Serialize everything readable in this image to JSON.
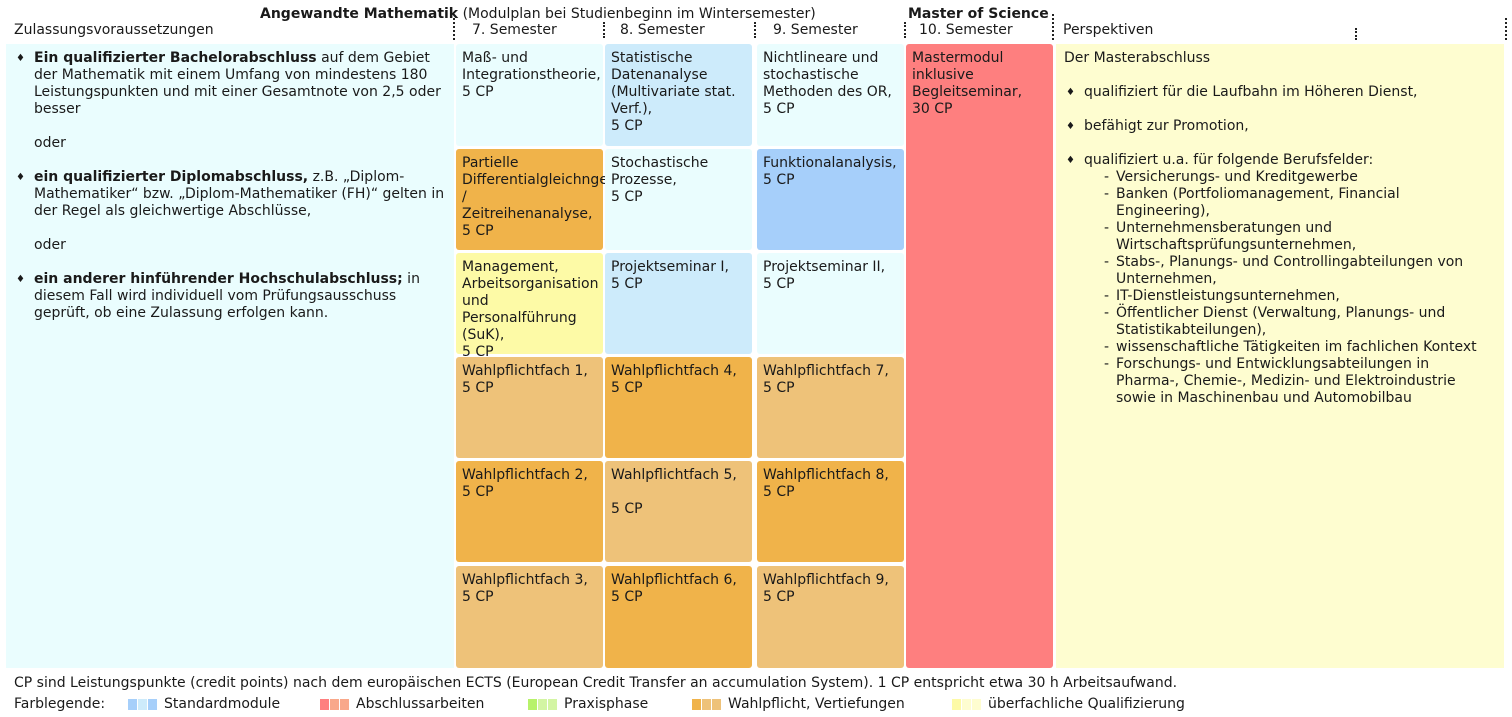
{
  "header": {
    "program": "Angewandte Mathematik",
    "subtitle": "(Modulplan bei Studienbeginn im Wintersemester)",
    "degree": "Master of Science",
    "col_prereq": "Zulassungsvoraussetzungen",
    "sem7": "7. Semester",
    "sem8": "8. Semester",
    "sem9": "9. Semester",
    "sem10": "10. Semester",
    "col_persp": "Perspektiven"
  },
  "prereq": {
    "item1_bold": "Ein qualifizierter Bachelorabschluss",
    "item1_rest": " auf dem Gebiet der Mathematik mit einem Umfang von mindestens 180 Leistungspunkten und mit einer Gesamtnote von 2,5 oder besser",
    "or1": "oder",
    "item2_bold": "ein qualifizierter Diplomabschluss,",
    "item2_rest": " z.B. „Diplom-Mathematiker“ bzw. „Diplom-Mathematiker (FH)“ gelten in der Regel als gleichwertige Abschlüsse,",
    "or2": "oder",
    "item3_bold": "ein anderer hinführender Hochschulabschluss;",
    "item3_rest": " in diesem Fall wird individuell vom Prüfungsausschuss geprüft, ob eine Zulassung erfolgen kann."
  },
  "modules": {
    "s7_1": {
      "title": "Maß- und Integrationstheorie,",
      "cp": "5 CP"
    },
    "s7_2": {
      "title": "Partielle Differentialgleichngen / Zeitreihenanalyse,",
      "cp": "5 CP"
    },
    "s7_3": {
      "title": "Management, Arbeitsorganisation und Personalführung (SuK),",
      "cp": "5 CP"
    },
    "s7_4": {
      "title": "Wahlpflichtfach 1,",
      "cp": "5 CP"
    },
    "s7_5": {
      "title": "Wahlpflichtfach 2,",
      "cp": "5 CP"
    },
    "s7_6": {
      "title": "Wahlpflichtfach 3,",
      "cp": "5 CP"
    },
    "s8_1": {
      "title": "Statistische Datenanalyse (Multivariate stat. Verf.),",
      "cp": "5 CP"
    },
    "s8_2": {
      "title": "Stochastische Prozesse,",
      "cp": "5 CP"
    },
    "s8_3": {
      "title": "Projektseminar I,",
      "cp": "5 CP"
    },
    "s8_4": {
      "title": "Wahlpflichtfach 4,",
      "cp": "5 CP"
    },
    "s8_5": {
      "title": "Wahlpflichtfach 5,",
      "cp": "5 CP"
    },
    "s8_6": {
      "title": "Wahlpflichtfach 6,",
      "cp": "5 CP"
    },
    "s9_1": {
      "title": "Nichtlineare und stochastische Methoden des OR,",
      "cp": "5 CP"
    },
    "s9_2": {
      "title": "Funktionalanalysis,",
      "cp": "5 CP"
    },
    "s9_3": {
      "title": "Projektseminar II,",
      "cp": "5 CP"
    },
    "s9_4": {
      "title": "Wahlpflichtfach 7,",
      "cp": "5 CP"
    },
    "s9_5": {
      "title": "Wahlpflichtfach 8,",
      "cp": "5 CP"
    },
    "s9_6": {
      "title": "Wahlpflichtfach 9,",
      "cp": "5 CP"
    },
    "s10": {
      "title": "Mastermodul inklusive Begleitseminar,",
      "cp": "30 CP"
    }
  },
  "perspectives": {
    "intro": "Der Masterabschluss",
    "b1": "qualifiziert für die Laufbahn im Höheren Dienst,",
    "b2": "befähigt zur Promotion,",
    "b3": "qualifiziert u.a. für folgende Berufsfelder:",
    "fields": [
      "Versicherungs- und Kreditgewerbe",
      "Banken (Portfoliomanagement, Financial Engineering),",
      "Unternehmensberatungen und Wirtschaftsprüfungsunternehmen,",
      "Stabs-, Planungs- und Controllingabteilungen von Unternehmen,",
      "IT-Dienstleistungsunternehmen,",
      "Öffentlicher Dienst (Verwaltung, Planungs- und Statistikabteilungen),",
      "wissenschaftliche Tätigkeiten im fachlichen Kontext",
      "Forschungs- und Entwicklungsabteilungen in Pharma-, Chemie-, Medizin- und Elektroindustrie sowie in Maschinenbau und Automobilbau"
    ]
  },
  "footer": {
    "cp_note": "CP sind Leistungspunkte (credit points) nach dem europäischen ECTS (European Credit Transfer an accumulation System). 1 CP entspricht etwa 30 h Arbeitsaufwand.",
    "legend_label": "Farblegende:",
    "legend": [
      {
        "label": "Standardmodule",
        "colors": [
          "#a6cffa",
          "#cdebfb"
        ]
      },
      {
        "label": "Abschlussarbeiten",
        "colors": [
          "#fe7f7f",
          "#f9a88a"
        ]
      },
      {
        "label": "Praxisphase",
        "colors": [
          "#b7f26a",
          "#d3f5a3"
        ]
      },
      {
        "label": "Wahlpflicht, Vertiefungen",
        "colors": [
          "#f0b34a",
          "#eec279"
        ]
      },
      {
        "label": "überfachliche Qualifizierung",
        "colors": [
          "#fdfaa6",
          "#fefdd0"
        ]
      }
    ]
  }
}
